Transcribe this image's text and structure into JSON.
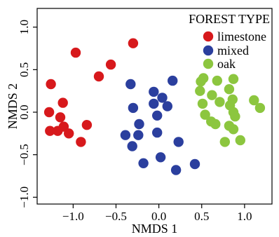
{
  "chart_data": {
    "type": "scatter",
    "xlabel": "NMDS 1",
    "ylabel": "NMDS 2",
    "xlim": [
      -1.42,
      1.32
    ],
    "ylim": [
      -1.08,
      1.22
    ],
    "xticks": [
      -1.0,
      -0.5,
      0.0,
      0.5,
      1.0
    ],
    "xtick_labels": [
      "−1.0",
      "−0.5",
      "0.0",
      "0.5",
      "1.0"
    ],
    "yticks": [
      -1.0,
      -0.5,
      0.0,
      0.5,
      1.0
    ],
    "ytick_labels": [
      "−1.0",
      "−0.5",
      "0.0",
      "0.5",
      "1.0"
    ],
    "grid": false,
    "legend": {
      "title": "FOREST TYPE",
      "placement": "top-right"
    },
    "series": [
      {
        "name": "limestone",
        "color": "#d7191c",
        "points": [
          [
            -0.97,
            0.7
          ],
          [
            -0.3,
            0.81
          ],
          [
            -0.56,
            0.56
          ],
          [
            -0.7,
            0.42
          ],
          [
            -1.26,
            0.33
          ],
          [
            -1.12,
            0.11
          ],
          [
            -1.28,
            0.0
          ],
          [
            -1.15,
            -0.06
          ],
          [
            -1.11,
            -0.17
          ],
          [
            -1.27,
            -0.22
          ],
          [
            -1.18,
            -0.22
          ],
          [
            -0.84,
            -0.15
          ],
          [
            -1.05,
            -0.25
          ],
          [
            -0.91,
            -0.35
          ]
        ]
      },
      {
        "name": "mixed",
        "color": "#2b3f9e",
        "points": [
          [
            -0.33,
            0.33
          ],
          [
            -0.06,
            0.24
          ],
          [
            0.16,
            0.37
          ],
          [
            0.04,
            0.17
          ],
          [
            -0.3,
            0.05
          ],
          [
            -0.06,
            0.1
          ],
          [
            0.1,
            0.07
          ],
          [
            -0.02,
            -0.04
          ],
          [
            -0.23,
            -0.14
          ],
          [
            -0.39,
            -0.27
          ],
          [
            -0.24,
            -0.27
          ],
          [
            -0.02,
            -0.24
          ],
          [
            0.23,
            -0.35
          ],
          [
            -0.31,
            -0.4
          ],
          [
            -0.18,
            -0.6
          ],
          [
            0.02,
            -0.53
          ],
          [
            0.2,
            -0.68
          ],
          [
            0.42,
            -0.61
          ]
        ]
      },
      {
        "name": "oak",
        "color": "#8cc63f",
        "points": [
          [
            0.52,
            0.4
          ],
          [
            0.49,
            0.36
          ],
          [
            0.68,
            0.37
          ],
          [
            0.87,
            0.39
          ],
          [
            0.48,
            0.25
          ],
          [
            0.62,
            0.2
          ],
          [
            0.82,
            0.27
          ],
          [
            0.86,
            0.15
          ],
          [
            0.71,
            0.12
          ],
          [
            0.51,
            0.1
          ],
          [
            0.83,
            0.08
          ],
          [
            1.11,
            0.14
          ],
          [
            0.54,
            -0.03
          ],
          [
            0.87,
            0.0
          ],
          [
            0.89,
            -0.05
          ],
          [
            1.18,
            0.05
          ],
          [
            0.61,
            -0.11
          ],
          [
            0.66,
            -0.14
          ],
          [
            0.82,
            -0.16
          ],
          [
            0.87,
            -0.2
          ],
          [
            0.77,
            -0.35
          ],
          [
            0.95,
            -0.33
          ]
        ]
      }
    ]
  }
}
